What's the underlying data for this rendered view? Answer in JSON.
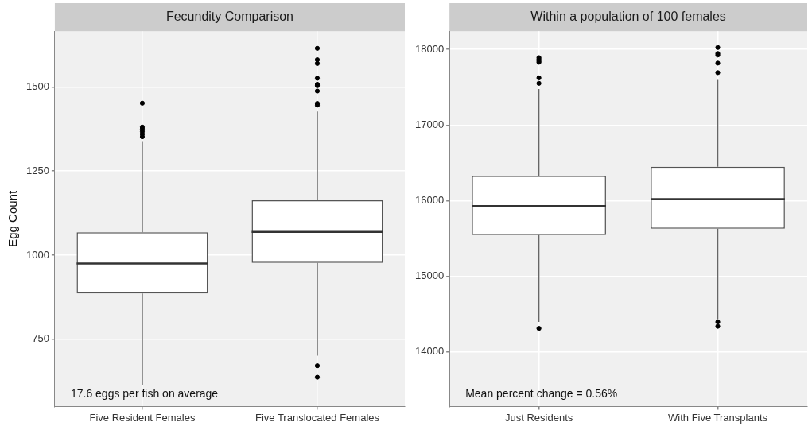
{
  "chart_data": [
    {
      "type": "box",
      "title": "Fecundity Comparison",
      "ylabel": "Egg Count",
      "categories": [
        "Five Resident Females",
        "Five Translocated Females"
      ],
      "boxes": [
        {
          "low": 614,
          "q1": 886,
          "median": 975,
          "q3": 1068,
          "high": 1337,
          "outliers": [
            1452,
            1381,
            1375,
            1368,
            1360,
            1352
          ]
        },
        {
          "low": 701,
          "q1": 977,
          "median": 1069,
          "q3": 1163,
          "high": 1427,
          "outliers": [
            1615,
            1581,
            1570,
            1526,
            1508,
            1504,
            1488,
            1451,
            1446,
            671,
            637
          ]
        }
      ],
      "ylim": [
        550,
        1666
      ],
      "yticks": [
        750,
        1000,
        1250,
        1500
      ],
      "grid": true,
      "annotations": [
        "17.6 eggs per fish on average"
      ]
    },
    {
      "type": "box",
      "title": "Within a population of 100 females",
      "categories": [
        "Just Residents",
        "With Five Transplants"
      ],
      "boxes": [
        {
          "low": 14397,
          "q1": 15545,
          "median": 15928,
          "q3": 16329,
          "high": 17476,
          "outliers": [
            17890,
            17870,
            17846,
            17829,
            17623,
            17551,
            14312
          ]
        },
        {
          "low": 14432,
          "q1": 15630,
          "median": 16021,
          "q3": 16449,
          "high": 17596,
          "outliers": [
            18024,
            17945,
            17925,
            17818,
            17692,
            14397,
            14339
          ]
        }
      ],
      "ylim": [
        13280,
        18240
      ],
      "yticks": [
        14000,
        15000,
        16000,
        17000,
        18000
      ],
      "grid": true,
      "annotations": [
        "Mean percent change = 0.56%"
      ]
    }
  ]
}
